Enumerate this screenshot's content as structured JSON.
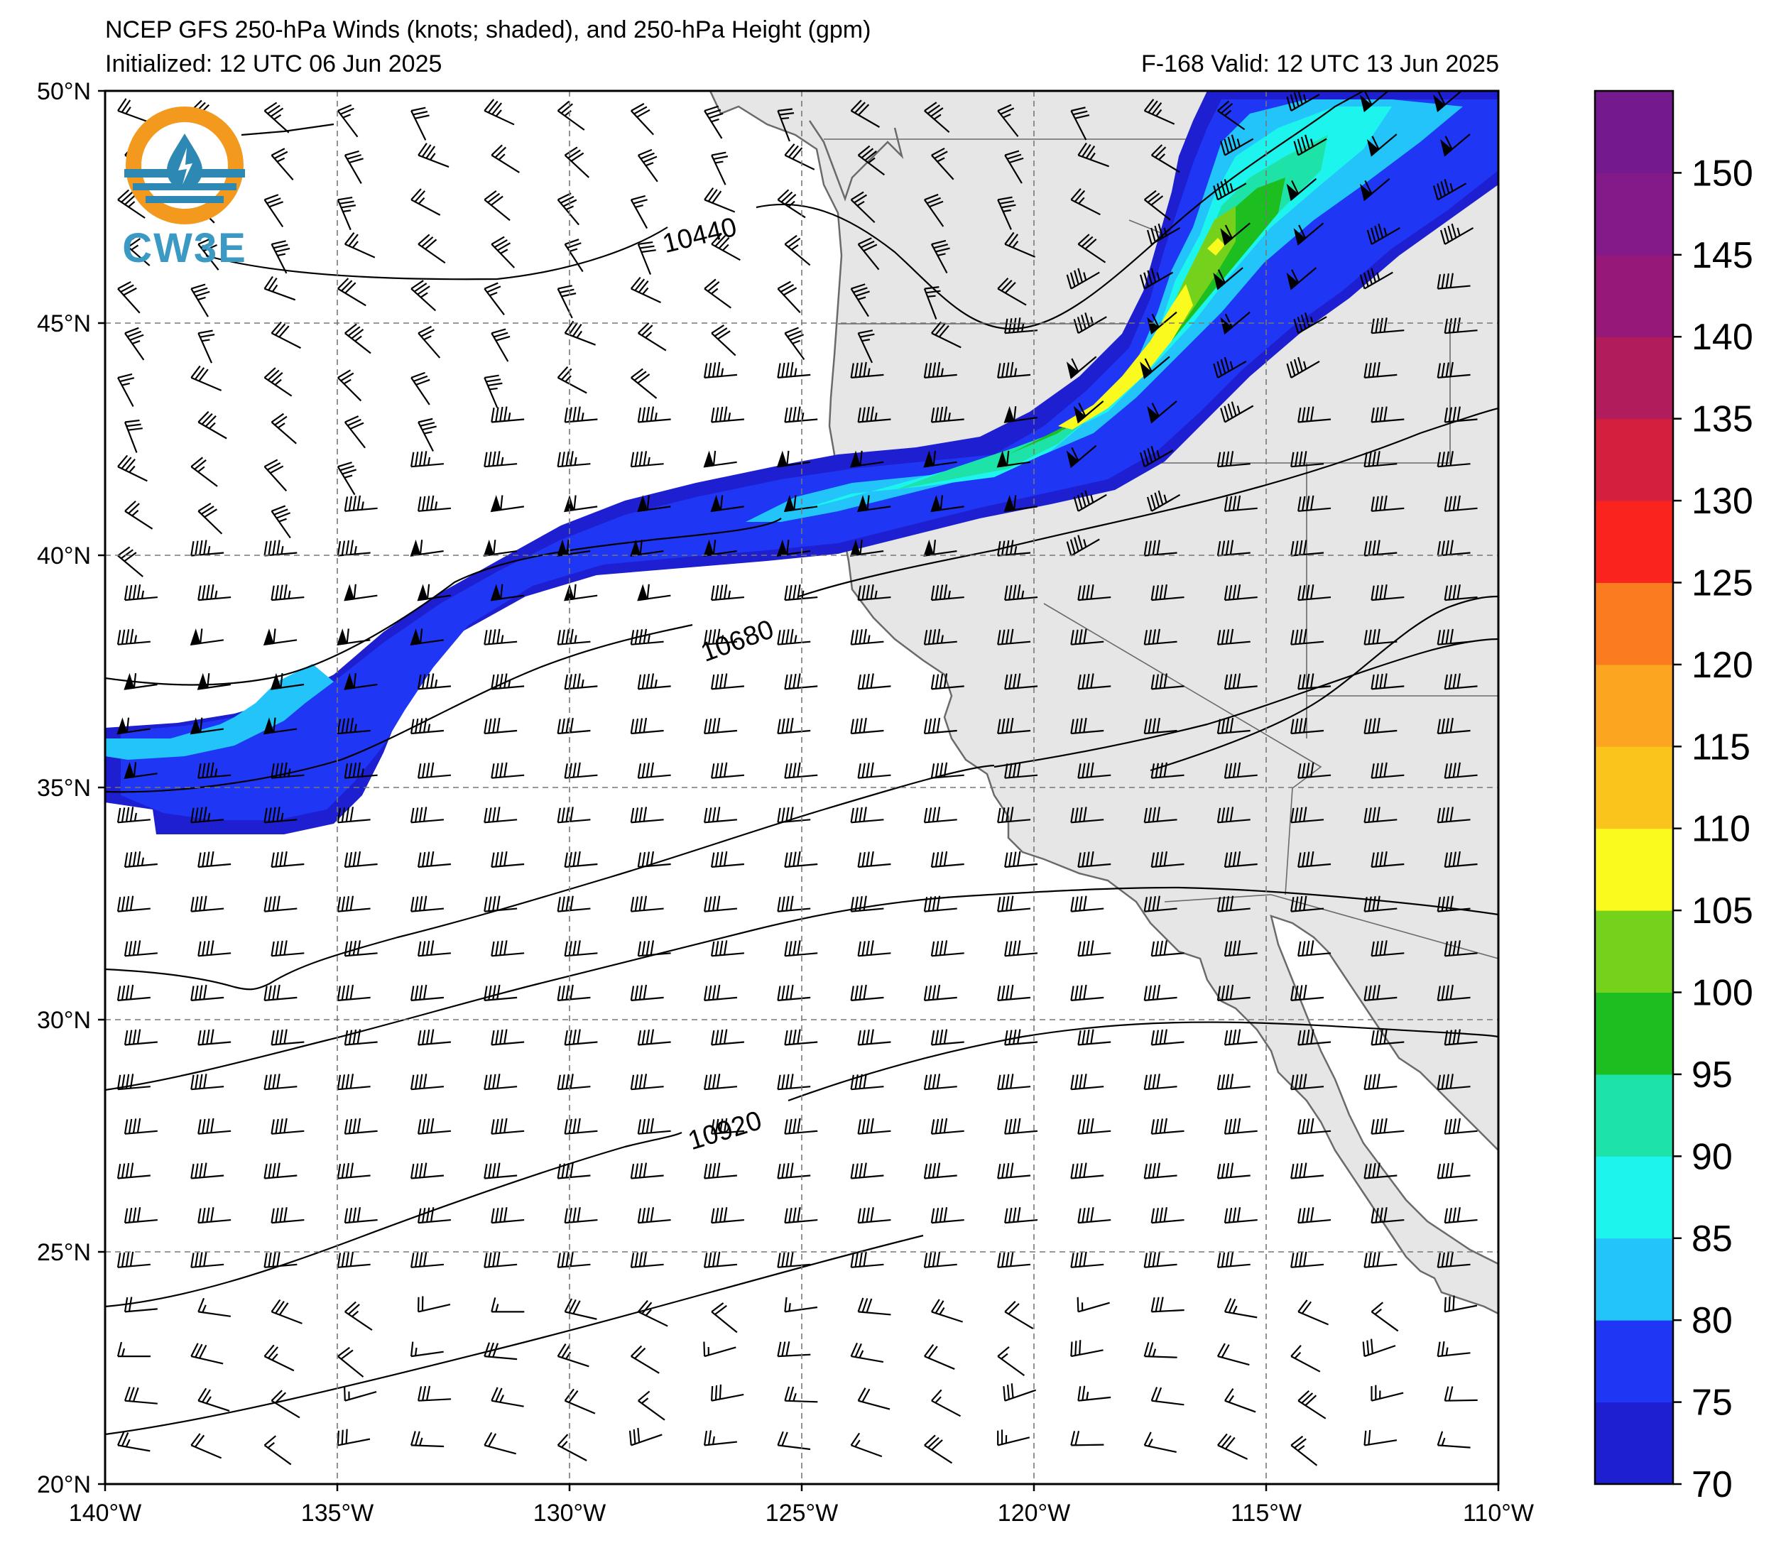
{
  "header": {
    "title": "NCEP GFS 250-hPa Winds (knots; shaded), and 250-hPa Height (gpm)",
    "initialized": "Initialized: 12 UTC 06 Jun 2025",
    "valid": "F-168  Valid: 12 UTC 13 Jun 2025"
  },
  "logo": {
    "text": "CW3E",
    "icon": "cw3e-water-drop-logo",
    "colors": [
      "#f39a1e",
      "#2d88b4"
    ]
  },
  "map": {
    "extent": {
      "lon": [
        -140,
        -110
      ],
      "lat": [
        20,
        50
      ]
    },
    "lat_labels": [
      "20°N",
      "25°N",
      "30°N",
      "35°N",
      "40°N",
      "45°N",
      "50°N"
    ],
    "lon_labels": [
      "140°W",
      "135°W",
      "130°W",
      "125°W",
      "120°W",
      "115°W",
      "110°W"
    ],
    "land_color": "#e6e6e6",
    "contour_labels": [
      "10440",
      "10680",
      "10920"
    ],
    "jet_max_speed_kt": 110
  },
  "colorbar": {
    "units": "knots",
    "tick_labels": [
      "70",
      "75",
      "80",
      "85",
      "90",
      "95",
      "100",
      "105",
      "110",
      "125",
      "130",
      "135",
      "140",
      "145",
      "150"
    ],
    "bands": [
      {
        "from": 70,
        "to": 75,
        "color": "#1d1fd0"
      },
      {
        "from": 75,
        "to": 80,
        "color": "#1f36f5"
      },
      {
        "from": 80,
        "to": 85,
        "color": "#22c4f9"
      },
      {
        "from": 85,
        "to": 90,
        "color": "#1ef4ee"
      },
      {
        "from": 90,
        "to": 95,
        "color": "#1ee3a8"
      },
      {
        "from": 95,
        "to": 100,
        "color": "#1dbe20"
      },
      {
        "from": 100,
        "to": 105,
        "color": "#74d21c"
      },
      {
        "from": 105,
        "to": 110,
        "color": "#fafa1e"
      },
      {
        "from": 110,
        "to": 115,
        "color": "#fbc41d"
      },
      {
        "from": 115,
        "to": 120,
        "color": "#fba520"
      },
      {
        "from": 120,
        "to": 125,
        "color": "#fb7b1f"
      },
      {
        "from": 125,
        "to": 130,
        "color": "#fb231e"
      },
      {
        "from": 130,
        "to": 135,
        "color": "#d41f3e"
      },
      {
        "from": 135,
        "to": 140,
        "color": "#b01c5c"
      },
      {
        "from": 140,
        "to": 145,
        "color": "#961878"
      },
      {
        "from": 145,
        "to": 150,
        "color": "#841a8a"
      },
      {
        "from": 150,
        "to": 155,
        "color": "#75198f"
      }
    ]
  }
}
